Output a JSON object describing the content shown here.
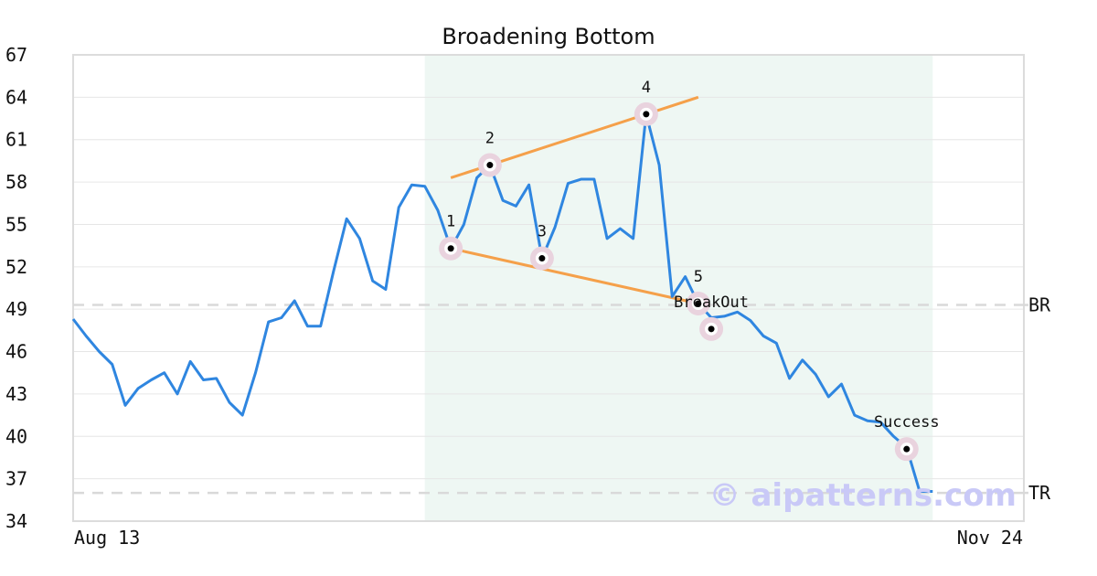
{
  "watermark": "© aipatterns.com",
  "colors": {
    "line": "#2f86e0",
    "trendline": "#f5a04a",
    "pattern_region": "#eef7f3",
    "grid": "#e6e6e6",
    "refline": "#d9d9d9",
    "marker_halo": "#e9d3de"
  },
  "chart_data": {
    "type": "line",
    "title": "Broadening Bottom",
    "x_tick_labels": [
      "Aug 13",
      "Nov 24"
    ],
    "y_ticks": [
      34,
      37,
      40,
      43,
      46,
      49,
      52,
      55,
      58,
      61,
      64,
      67
    ],
    "ylim": [
      34,
      67
    ],
    "xlim": [
      0,
      73
    ],
    "grid": "horizontal",
    "series": [
      {
        "values": [
          48.3,
          47.1,
          46.0,
          45.1,
          42.2,
          43.4,
          44.0,
          44.5,
          43.0,
          45.3,
          44.0,
          44.1,
          42.4,
          41.5,
          44.5,
          48.1,
          48.4,
          49.6,
          47.8,
          47.8,
          51.7,
          55.4,
          54.0,
          51.0,
          50.4,
          56.2,
          57.8,
          57.7,
          56.0,
          53.3,
          55.0,
          58.3,
          59.2,
          56.7,
          56.3,
          57.8,
          52.6,
          54.8,
          57.9,
          58.2,
          58.2,
          54.0,
          54.7,
          54.0,
          62.8,
          59.2,
          49.9,
          51.3,
          49.4,
          48.4,
          48.5,
          48.8,
          48.2,
          47.1,
          46.6,
          44.1,
          45.4,
          44.4,
          42.8,
          43.7,
          41.5,
          41.1,
          41.0,
          40.0,
          39.2,
          36.1,
          36.1
        ]
      }
    ],
    "pattern_region": {
      "x_start": 27,
      "x_end": 66
    },
    "reference_lines": [
      {
        "label": "BR",
        "y": 49.3
      },
      {
        "label": "TR",
        "y": 36.0
      }
    ],
    "trendlines": [
      {
        "name": "upper",
        "x0": 29,
        "y0": 58.3,
        "x1": 48,
        "y1": 64.0
      },
      {
        "name": "lower",
        "x0": 29,
        "y0": 53.3,
        "x1": 48,
        "y1": 49.4
      }
    ],
    "annotations": [
      {
        "label": "1",
        "x": 29,
        "y": 53.3,
        "label_pos": "above"
      },
      {
        "label": "2",
        "x": 32,
        "y": 59.2,
        "label_pos": "above"
      },
      {
        "label": "3",
        "x": 36,
        "y": 52.6,
        "label_pos": "above"
      },
      {
        "label": "4",
        "x": 44,
        "y": 62.8,
        "label_pos": "above"
      },
      {
        "label": "5",
        "x": 48,
        "y": 49.4,
        "label_pos": "above"
      },
      {
        "label": "BreakOut",
        "x": 49,
        "y": 47.6,
        "label_pos": "above"
      },
      {
        "label": "Success",
        "x": 64,
        "y": 39.1,
        "label_pos": "above"
      }
    ]
  }
}
